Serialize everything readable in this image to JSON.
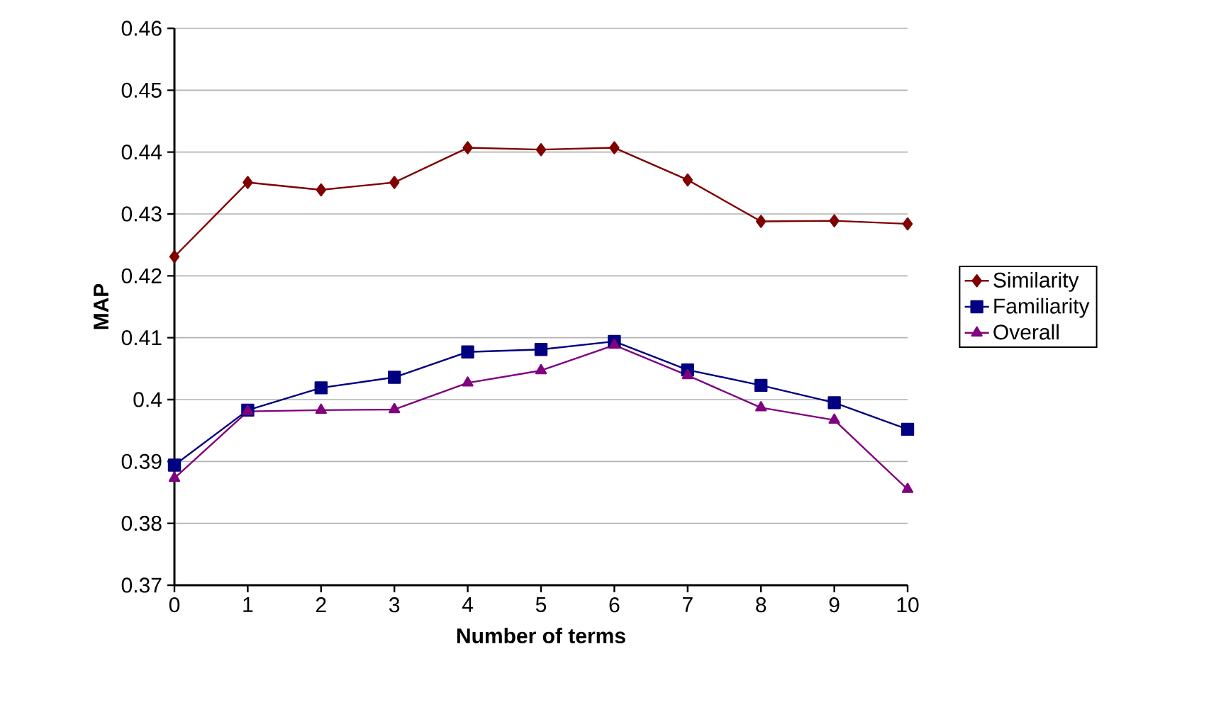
{
  "chart_data": {
    "type": "line",
    "xlabel": "Number of terms",
    "ylabel": "MAP",
    "x": [
      0,
      1,
      2,
      3,
      4,
      5,
      6,
      7,
      8,
      9,
      10
    ],
    "xlim": [
      0,
      10
    ],
    "xticks": [
      0,
      1,
      2,
      3,
      4,
      5,
      6,
      7,
      8,
      9,
      10
    ],
    "ylim": [
      0.37,
      0.46
    ],
    "yticks": [
      0.37,
      0.38,
      0.39,
      0.4,
      0.41,
      0.42,
      0.43,
      0.44,
      0.45,
      0.46
    ],
    "grid": "y",
    "legend": "right",
    "line_style": "solid",
    "series": [
      {
        "name": "Similarity",
        "color": "#800000",
        "marker": "diamond",
        "values": [
          0.4231,
          0.4351,
          0.4339,
          0.4351,
          0.4407,
          0.4404,
          0.4407,
          0.4355,
          0.4288,
          0.4289,
          0.4284
        ]
      },
      {
        "name": "Familiarity",
        "color": "#000080",
        "marker": "square",
        "values": [
          0.3894,
          0.3983,
          0.4019,
          0.4036,
          0.4077,
          0.4081,
          0.4094,
          0.4048,
          0.4023,
          0.3995,
          0.3952
        ]
      },
      {
        "name": "Overall",
        "color": "#800080",
        "marker": "triangle",
        "values": [
          0.3873,
          0.3981,
          0.3983,
          0.3984,
          0.4027,
          0.4047,
          0.4088,
          0.4039,
          0.3987,
          0.3967,
          0.3855
        ]
      }
    ]
  }
}
